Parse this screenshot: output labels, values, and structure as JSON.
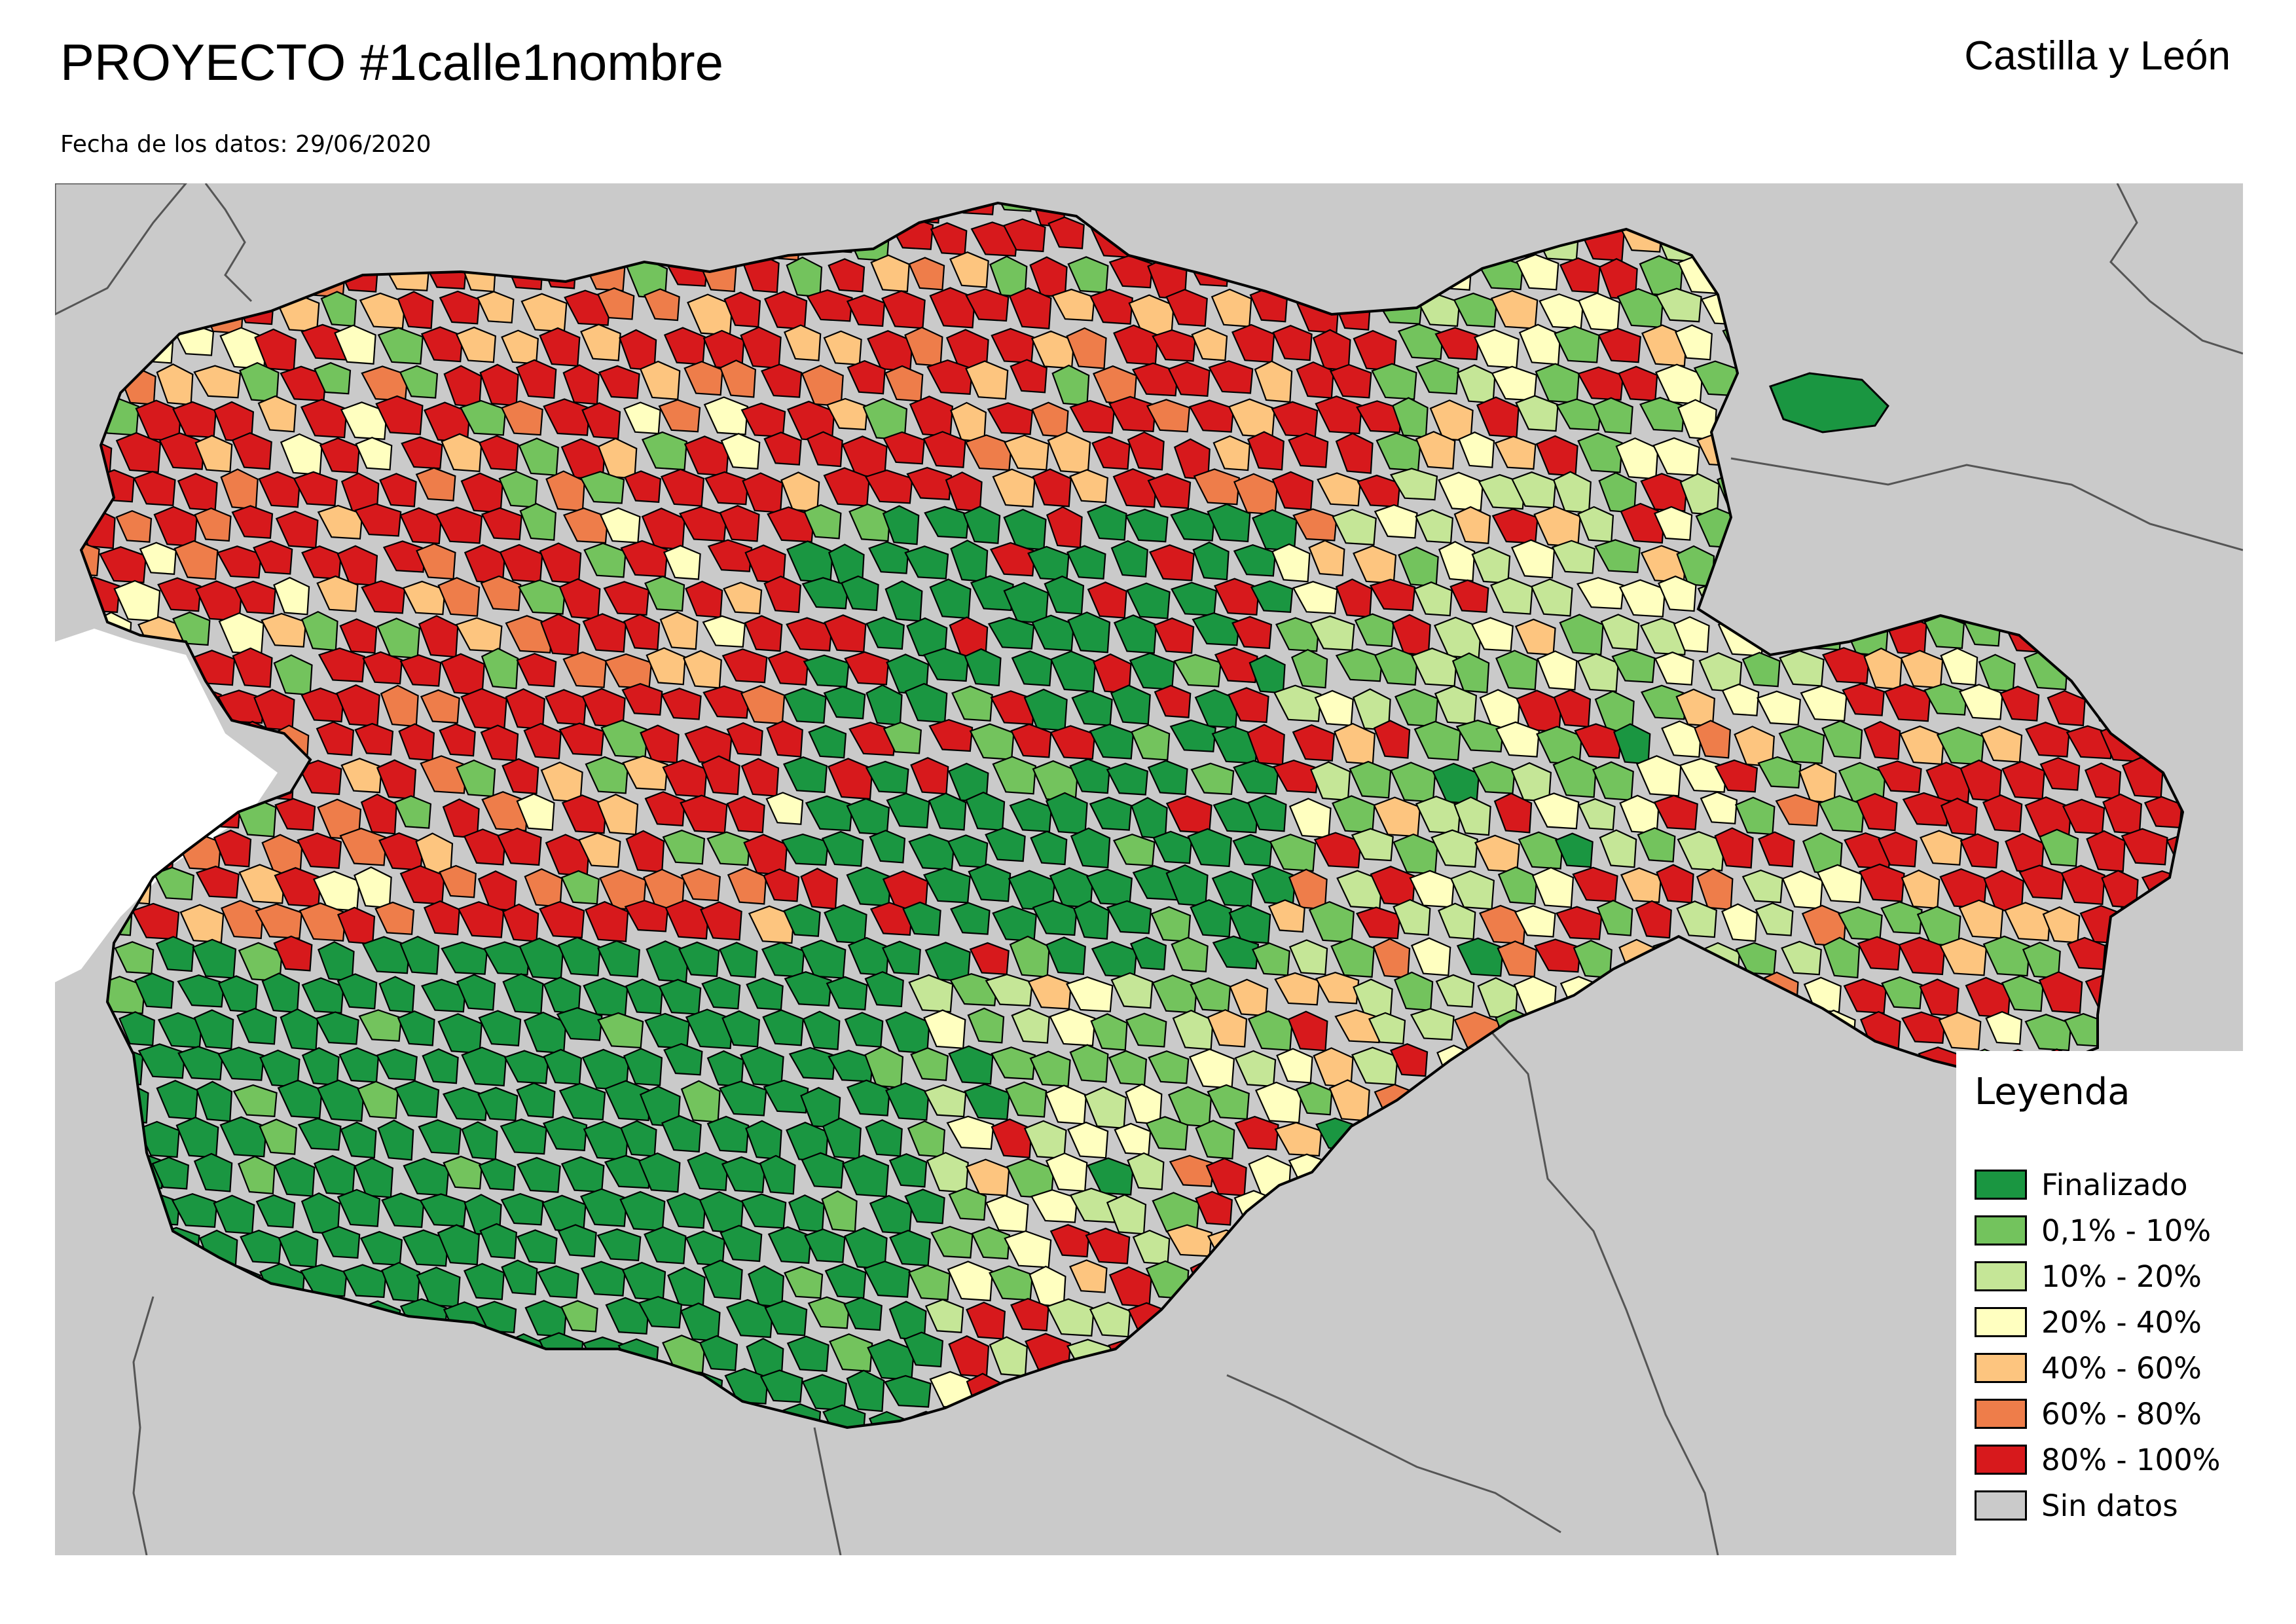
{
  "header": {
    "title": "PROYECTO #1calle1nombre",
    "region": "Castilla y León",
    "date_line": "Fecha de los datos: 29/06/2020"
  },
  "colors": {
    "finalizado": "#1a9641",
    "p0_10": "#73c35d",
    "p10_20": "#c5e697",
    "p20_40": "#ffffc0",
    "p40_60": "#fdc57f",
    "p60_80": "#ee7d4a",
    "p80_100": "#d7191c",
    "sin_datos": "#cacaca",
    "background_land": "#cacaca",
    "sea": "#ffffff"
  },
  "legend": {
    "title": "Leyenda",
    "items": [
      {
        "label": "Finalizado",
        "color": "#1a9641"
      },
      {
        "label": "0,1% - 10%",
        "color": "#73c35d"
      },
      {
        "label": "10% - 20%",
        "color": "#c5e697"
      },
      {
        "label": "20% - 40%",
        "color": "#ffffc0"
      },
      {
        "label": "40% - 60%",
        "color": "#fdc57f"
      },
      {
        "label": "60% - 80%",
        "color": "#ee7d4a"
      },
      {
        "label": "80% - 100%",
        "color": "#d7191c"
      },
      {
        "label": "Sin datos",
        "color": "#cacaca"
      }
    ]
  }
}
